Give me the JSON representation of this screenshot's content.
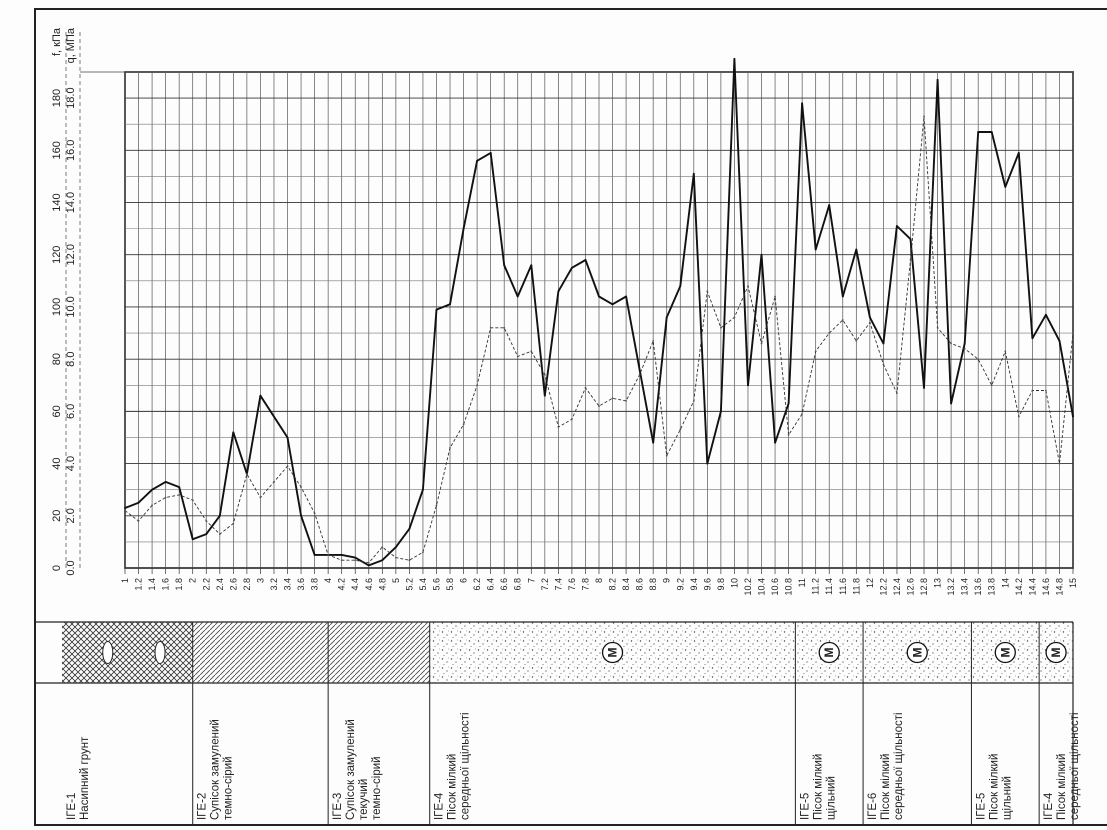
{
  "page": {
    "title": ""
  },
  "chart_data": {
    "type": "line",
    "orientation": "rotated-90-ccw",
    "axis_f": {
      "label": "f, кПа",
      "ticks": [
        "0",
        "20",
        "40",
        "60",
        "80",
        "100",
        "120",
        "140",
        "160",
        "180"
      ],
      "range": [
        0,
        190
      ]
    },
    "axis_q": {
      "label": "q, МПа",
      "ticks": [
        "0.0",
        "2.0",
        "4.0",
        "6.0",
        "8.0",
        "10.0",
        "12.0",
        "14.0",
        "16.0",
        "18.0"
      ],
      "range": [
        0,
        19
      ]
    },
    "depth_ticks": [
      "1",
      "1.2",
      "1.4",
      "1.6",
      "1.8",
      "2",
      "2.2",
      "2.4",
      "2.6",
      "2.8",
      "3",
      "3.2",
      "3.4",
      "3.6",
      "3.8",
      "4",
      "4.2",
      "4.4",
      "4.6",
      "4.8",
      "5",
      "5.2",
      "5.4",
      "5.6",
      "5.8",
      "6",
      "6.2",
      "6.4",
      "6.6",
      "6.8",
      "7",
      "7.2",
      "7.4",
      "7.6",
      "7.8",
      "8",
      "8.2",
      "8.4",
      "8.6",
      "8.8",
      "9",
      "9.2",
      "9.4",
      "9.6",
      "9.8",
      "10",
      "10.2",
      "10.4",
      "10.6",
      "10.8",
      "11",
      "11.2",
      "11.4",
      "11.6",
      "11.8",
      "12",
      "12.2",
      "12.4",
      "12.6",
      "12.8",
      "13",
      "13.2",
      "13.4",
      "13.6",
      "13.8",
      "14",
      "14.2",
      "14.4",
      "14.6",
      "14.8",
      "15"
    ],
    "depth_range": [
      1,
      15
    ],
    "grid": true,
    "series": [
      {
        "style": "solid",
        "axis": "q",
        "points": [
          [
            1.0,
            2.3
          ],
          [
            1.2,
            2.5
          ],
          [
            1.4,
            3.0
          ],
          [
            1.6,
            3.3
          ],
          [
            1.8,
            3.1
          ],
          [
            2.0,
            1.1
          ],
          [
            2.2,
            1.3
          ],
          [
            2.4,
            2.0
          ],
          [
            2.6,
            5.2
          ],
          [
            2.8,
            3.6
          ],
          [
            3.0,
            6.6
          ],
          [
            3.4,
            5.0
          ],
          [
            3.6,
            2.0
          ],
          [
            3.8,
            0.5
          ],
          [
            4.0,
            0.5
          ],
          [
            4.2,
            0.5
          ],
          [
            4.4,
            0.4
          ],
          [
            4.6,
            0.1
          ],
          [
            4.8,
            0.3
          ],
          [
            5.0,
            0.8
          ],
          [
            5.2,
            1.5
          ],
          [
            5.4,
            3.0
          ],
          [
            5.6,
            9.9
          ],
          [
            5.8,
            10.1
          ],
          [
            6.0,
            13.0
          ],
          [
            6.2,
            15.6
          ],
          [
            6.4,
            15.9
          ],
          [
            6.6,
            11.6
          ],
          [
            6.8,
            10.4
          ],
          [
            7.0,
            11.6
          ],
          [
            7.2,
            6.6
          ],
          [
            7.4,
            10.6
          ],
          [
            7.6,
            11.5
          ],
          [
            7.8,
            11.8
          ],
          [
            8.0,
            10.4
          ],
          [
            8.2,
            10.1
          ],
          [
            8.4,
            10.4
          ],
          [
            8.6,
            7.6
          ],
          [
            8.8,
            4.8
          ],
          [
            9.0,
            9.6
          ],
          [
            9.2,
            10.8
          ],
          [
            9.4,
            15.1
          ],
          [
            9.6,
            4.0
          ],
          [
            9.8,
            6.0
          ],
          [
            10.0,
            19.5
          ],
          [
            10.2,
            7.0
          ],
          [
            10.4,
            12.0
          ],
          [
            10.6,
            4.8
          ],
          [
            10.8,
            6.3
          ],
          [
            11.0,
            17.8
          ],
          [
            11.2,
            12.2
          ],
          [
            11.4,
            13.9
          ],
          [
            11.6,
            10.4
          ],
          [
            11.8,
            12.2
          ],
          [
            12.0,
            9.6
          ],
          [
            12.2,
            8.6
          ],
          [
            12.4,
            13.1
          ],
          [
            12.6,
            12.6
          ],
          [
            12.8,
            6.9
          ],
          [
            13.0,
            18.7
          ],
          [
            13.2,
            6.3
          ],
          [
            13.4,
            8.6
          ],
          [
            13.6,
            16.7
          ],
          [
            13.8,
            16.7
          ],
          [
            14.0,
            14.6
          ],
          [
            14.2,
            15.9
          ],
          [
            14.4,
            8.8
          ],
          [
            14.6,
            9.7
          ],
          [
            14.8,
            8.7
          ],
          [
            15.0,
            5.8
          ]
        ]
      },
      {
        "style": "dashed",
        "axis": "q",
        "points": [
          [
            1.0,
            2.2
          ],
          [
            1.2,
            1.8
          ],
          [
            1.4,
            2.4
          ],
          [
            1.6,
            2.7
          ],
          [
            1.8,
            2.8
          ],
          [
            2.0,
            2.6
          ],
          [
            2.2,
            1.8
          ],
          [
            2.4,
            1.3
          ],
          [
            2.6,
            1.7
          ],
          [
            2.8,
            3.6
          ],
          [
            3.0,
            2.7
          ],
          [
            3.2,
            3.3
          ],
          [
            3.4,
            3.9
          ],
          [
            3.6,
            3.1
          ],
          [
            3.8,
            2.1
          ],
          [
            4.0,
            0.5
          ],
          [
            4.2,
            0.3
          ],
          [
            4.4,
            0.3
          ],
          [
            4.6,
            0.2
          ],
          [
            4.8,
            0.8
          ],
          [
            5.0,
            0.4
          ],
          [
            5.2,
            0.3
          ],
          [
            5.4,
            0.6
          ],
          [
            5.6,
            2.4
          ],
          [
            5.8,
            4.6
          ],
          [
            6.0,
            5.5
          ],
          [
            6.2,
            7.0
          ],
          [
            6.4,
            9.2
          ],
          [
            6.6,
            9.2
          ],
          [
            6.8,
            8.1
          ],
          [
            7.0,
            8.3
          ],
          [
            7.2,
            7.4
          ],
          [
            7.4,
            5.4
          ],
          [
            7.6,
            5.7
          ],
          [
            7.8,
            6.9
          ],
          [
            8.0,
            6.2
          ],
          [
            8.2,
            6.5
          ],
          [
            8.4,
            6.4
          ],
          [
            8.6,
            7.4
          ],
          [
            8.8,
            8.7
          ],
          [
            9.0,
            4.3
          ],
          [
            9.2,
            5.3
          ],
          [
            9.4,
            6.4
          ],
          [
            9.6,
            10.6
          ],
          [
            9.8,
            9.2
          ],
          [
            10.0,
            9.6
          ],
          [
            10.2,
            10.8
          ],
          [
            10.4,
            8.6
          ],
          [
            10.6,
            10.4
          ],
          [
            10.8,
            5.1
          ],
          [
            11.0,
            5.9
          ],
          [
            11.2,
            8.3
          ],
          [
            11.4,
            9.0
          ],
          [
            11.6,
            9.5
          ],
          [
            11.8,
            8.7
          ],
          [
            12.0,
            9.4
          ],
          [
            12.2,
            7.8
          ],
          [
            12.4,
            6.7
          ],
          [
            12.6,
            11.8
          ],
          [
            12.8,
            17.3
          ],
          [
            13.0,
            9.2
          ],
          [
            13.2,
            8.6
          ],
          [
            13.4,
            8.4
          ],
          [
            13.6,
            8.0
          ],
          [
            13.8,
            7.0
          ],
          [
            14.0,
            8.3
          ],
          [
            14.2,
            5.8
          ],
          [
            14.4,
            6.8
          ],
          [
            14.6,
            6.8
          ],
          [
            14.8,
            4.0
          ],
          [
            15.0,
            9.0
          ]
        ]
      }
    ]
  },
  "strata": [
    {
      "code": "ІГЕ-1",
      "desc": [
        "Насипний грунт"
      ],
      "from": 1.0,
      "to": 2.0,
      "pattern": "fill"
    },
    {
      "code": "ІГЕ-2",
      "desc": [
        "Супісок замулений",
        "темно-сірий"
      ],
      "from": 2.0,
      "to": 4.0,
      "pattern": "hatch"
    },
    {
      "code": "ІГЕ-3",
      "desc": [
        "Супісок замулений",
        "текучий",
        "темно-сірий"
      ],
      "from": 4.0,
      "to": 5.5,
      "pattern": "hatch"
    },
    {
      "code": "ІГЕ-4",
      "desc": [
        "Пісок мілкий",
        "середньої щільності"
      ],
      "from": 5.5,
      "to": 10.9,
      "pattern": "sand",
      "symbol": "M"
    },
    {
      "code": "ІГЕ-5",
      "desc": [
        "Пісок мілкий",
        "щільний"
      ],
      "from": 10.9,
      "to": 11.9,
      "pattern": "sand",
      "symbol": "M"
    },
    {
      "code": "ІГЕ-6",
      "desc": [
        "Пісок мілкий",
        "середньої щільності"
      ],
      "from": 11.9,
      "to": 13.5,
      "pattern": "sand",
      "symbol": "M"
    },
    {
      "code": "ІГЕ-5",
      "desc": [
        "Пісок мілкий",
        "щільний"
      ],
      "from": 13.5,
      "to": 14.5,
      "pattern": "sand",
      "symbol": "M"
    },
    {
      "code": "ІГЕ-4",
      "desc": [
        "Пісок мілкий",
        "середньої щільності"
      ],
      "from": 14.5,
      "to": 15.0,
      "pattern": "sand",
      "symbol": "M"
    }
  ]
}
